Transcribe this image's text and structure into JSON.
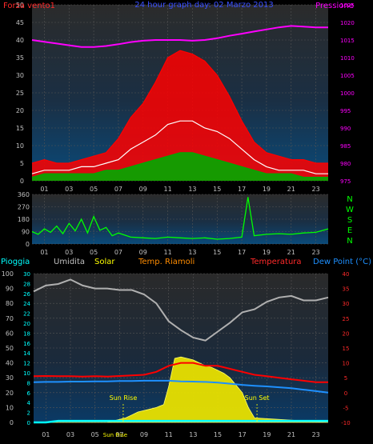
{
  "chart_data": [
    {
      "type": "line",
      "title": "24 hour graph day: 02 Marzo 2013",
      "left_axis_label": "Forza vento1",
      "right_axis_label": "Pressione",
      "left_ticks": [
        0,
        5,
        10,
        15,
        20,
        25,
        30,
        35,
        40,
        45,
        50
      ],
      "right_ticks": [
        975,
        980,
        985,
        990,
        995,
        1000,
        1005,
        1010,
        1015,
        1020,
        1025
      ],
      "x_ticks": [
        "01",
        "03",
        "05",
        "07",
        "09",
        "11",
        "13",
        "15",
        "17",
        "19",
        "21",
        "23"
      ],
      "ylim": [
        0,
        50
      ],
      "y2lim": [
        975,
        1025
      ],
      "series": [
        {
          "name": "Forza vento1",
          "color": "#ff0000",
          "axis": "left",
          "x": [
            0,
            1,
            2,
            3,
            4,
            5,
            6,
            7,
            8,
            9,
            10,
            11,
            12,
            13,
            14,
            15,
            16,
            17,
            18,
            19,
            20,
            21,
            22,
            23,
            24
          ],
          "values": [
            5,
            6,
            5,
            5,
            6,
            7,
            8,
            12,
            18,
            22,
            28,
            35,
            37,
            36,
            34,
            30,
            24,
            17,
            11,
            8,
            7,
            6,
            6,
            5,
            5
          ]
        },
        {
          "color": "#ffffff",
          "axis": "left",
          "x": [
            0,
            1,
            2,
            3,
            4,
            5,
            6,
            7,
            8,
            9,
            10,
            11,
            12,
            13,
            14,
            15,
            16,
            17,
            18,
            19,
            20,
            21,
            22,
            23,
            24
          ],
          "values": [
            2,
            3,
            3,
            3,
            4,
            4,
            5,
            6,
            9,
            11,
            13,
            16,
            17,
            17,
            15,
            14,
            12,
            9,
            6,
            4,
            3,
            3,
            3,
            2,
            2
          ]
        },
        {
          "color": "#00aa00",
          "axis": "left",
          "x": [
            0,
            1,
            2,
            3,
            4,
            5,
            6,
            7,
            8,
            9,
            10,
            11,
            12,
            13,
            14,
            15,
            16,
            17,
            18,
            19,
            20,
            21,
            22,
            23,
            24
          ],
          "values": [
            1,
            2,
            2,
            2,
            2,
            2,
            3,
            3,
            4,
            5,
            6,
            7,
            8,
            8,
            7,
            6,
            5,
            4,
            3,
            2,
            2,
            2,
            1,
            1,
            1
          ]
        },
        {
          "name": "Pressione",
          "color": "#ff00ff",
          "axis": "right",
          "x": [
            0,
            1,
            2,
            3,
            4,
            5,
            6,
            7,
            8,
            9,
            10,
            11,
            12,
            13,
            14,
            15,
            16,
            17,
            18,
            19,
            20,
            21,
            22,
            23,
            24
          ],
          "values": [
            1015,
            1014.5,
            1014,
            1013.5,
            1013,
            1013,
            1013.3,
            1013.8,
            1014.4,
            1014.8,
            1015,
            1015,
            1015,
            1014.8,
            1015,
            1015.5,
            1016.2,
            1016.8,
            1017.4,
            1018,
            1018.6,
            1019,
            1018.8,
            1018.6,
            1018.6
          ]
        }
      ]
    },
    {
      "type": "line",
      "left_ticks": [
        0,
        90,
        180,
        270,
        360
      ],
      "right_labels": [
        "N",
        "W",
        "S",
        "E",
        "N"
      ],
      "x_ticks": [
        "01",
        "03",
        "05",
        "07",
        "09",
        "11",
        "13",
        "15",
        "17",
        "19",
        "21",
        "23"
      ],
      "ylim": [
        0,
        360
      ],
      "series": [
        {
          "color": "#00ff00",
          "x": [
            0,
            0.5,
            1,
            1.5,
            2,
            2.5,
            3,
            3.5,
            4,
            4.5,
            5,
            5.5,
            6,
            6.5,
            7,
            8,
            9,
            10,
            11,
            12,
            13,
            14,
            15,
            16,
            17,
            17.5,
            18,
            19,
            20,
            21,
            22,
            23,
            24
          ],
          "values": [
            90,
            70,
            110,
            85,
            130,
            75,
            150,
            95,
            180,
            80,
            200,
            100,
            120,
            60,
            80,
            50,
            45,
            40,
            50,
            45,
            40,
            45,
            35,
            40,
            50,
            340,
            60,
            70,
            75,
            70,
            80,
            85,
            110
          ]
        }
      ]
    },
    {
      "type": "line",
      "legend": [
        "Pioggia",
        "Umidita",
        "Solar",
        "Temp. Riamoli",
        "Temperatura",
        "Dew Point (°C)"
      ],
      "left_ticks": [
        0,
        10,
        20,
        30,
        40,
        50,
        60,
        70,
        80,
        90,
        100
      ],
      "left2_ticks": [
        0,
        2,
        4,
        6,
        8,
        10,
        12,
        14,
        16,
        18,
        20,
        22,
        24,
        26,
        28,
        30
      ],
      "right_ticks": [
        -10,
        -5,
        0,
        5,
        10,
        15,
        20,
        25,
        30,
        35,
        40
      ],
      "x_ticks": [
        "01",
        "03",
        "05",
        "07",
        "09",
        "11",
        "13",
        "15",
        "17",
        "19",
        "21",
        "23"
      ],
      "annotations": [
        {
          "text": "Sun Rise",
          "x": 7.3
        },
        {
          "text": "Sun Set",
          "x": 18.2
        },
        {
          "text": "Sun Rise",
          "x": 7.3
        }
      ],
      "ylim": [
        0,
        100
      ],
      "y2lim": [
        -10,
        40
      ],
      "series": [
        {
          "name": "Umidita",
          "color": "#b0b0b0",
          "axis": "left",
          "x": [
            0,
            1,
            2,
            3,
            4,
            5,
            6,
            7,
            8,
            9,
            10,
            11,
            12,
            13,
            14,
            15,
            16,
            17,
            18,
            19,
            20,
            21,
            22,
            23,
            24
          ],
          "values": [
            88,
            92,
            93,
            96,
            92,
            90,
            90,
            89,
            89,
            86,
            80,
            68,
            62,
            57,
            55,
            61,
            67,
            74,
            76,
            81,
            84,
            85,
            82,
            82,
            84
          ]
        },
        {
          "name": "Solar",
          "color": "#ffff00",
          "axis": "left",
          "x": [
            0,
            6,
            6.5,
            7,
            7.5,
            8,
            8.5,
            9,
            9.5,
            10,
            10.3,
            10.6,
            11,
            11.5,
            12,
            12.5,
            13,
            13.5,
            14,
            14.5,
            15,
            15.5,
            16,
            16.5,
            17,
            17.5,
            18,
            24
          ],
          "values": [
            0,
            0,
            1,
            2,
            3,
            5,
            7,
            8,
            9,
            10,
            11,
            12,
            24,
            43,
            44,
            43,
            42,
            40,
            38,
            37,
            35,
            33,
            30,
            25,
            20,
            10,
            3,
            0
          ]
        },
        {
          "name": "Temperatura",
          "color": "#ff0000",
          "axis": "right",
          "x": [
            0,
            1,
            2,
            3,
            4,
            5,
            6,
            7,
            8,
            9,
            10,
            11,
            12,
            13,
            14,
            15,
            16,
            17,
            18,
            19,
            20,
            21,
            22,
            23,
            24
          ],
          "values": [
            5.5,
            5.6,
            5.5,
            5.5,
            5.4,
            5.5,
            5.4,
            5.6,
            5.8,
            6,
            7,
            9,
            10,
            10,
            9,
            9,
            8,
            7,
            6,
            5.5,
            5,
            4.5,
            4,
            3.5,
            3.5
          ]
        },
        {
          "name": "Dew Point (°C)",
          "color": "#1e90ff",
          "axis": "right",
          "x": [
            0,
            1,
            2,
            3,
            4,
            5,
            6,
            7,
            8,
            9,
            10,
            11,
            12,
            13,
            14,
            15,
            16,
            17,
            18,
            19,
            20,
            21,
            22,
            23,
            24
          ],
          "values": [
            3.5,
            3.6,
            3.6,
            3.7,
            3.7,
            3.8,
            3.8,
            3.9,
            3.9,
            4,
            4,
            4,
            3.8,
            3.7,
            3.6,
            3.4,
            3,
            2.6,
            2.3,
            2.1,
            1.8,
            1.5,
            1,
            0.5,
            0
          ]
        },
        {
          "name": "Pioggia",
          "color": "#00ffff",
          "axis": "left",
          "x": [
            0,
            1,
            2,
            24
          ],
          "values": [
            0,
            0,
            1,
            1
          ]
        }
      ]
    }
  ]
}
